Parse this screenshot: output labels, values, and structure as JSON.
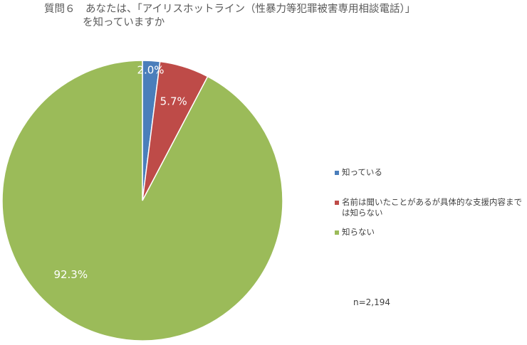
{
  "title": {
    "line1": "質問６　あなたは、「アイリスホットライン（性暴力等犯罪被害専用相談電話）」",
    "line2": "を知っていますか"
  },
  "chart_data": {
    "type": "pie",
    "categories": [
      "知っている",
      "名前は聞いたことがあるが具体的な支援内容までは知らない",
      "知らない"
    ],
    "values": [
      2.0,
      5.7,
      92.3
    ],
    "data_labels": [
      "2.0%",
      "5.7%",
      "92.3%"
    ],
    "colors": [
      "#4a7ebb",
      "#be4b48",
      "#9bbb59"
    ],
    "start_angle_deg": 0,
    "direction": "clockwise",
    "legend_position": "right"
  },
  "legend": {
    "items": [
      {
        "label_lines": [
          "知っている"
        ],
        "color": "#4a7ebb"
      },
      {
        "label_lines": [
          "名前は聞いたことがあるが具体的な支援内容まで",
          "は知らない"
        ],
        "color": "#be4b48"
      },
      {
        "label_lines": [
          "知らない"
        ],
        "color": "#9bbb59"
      }
    ]
  },
  "note": "n=2,194"
}
